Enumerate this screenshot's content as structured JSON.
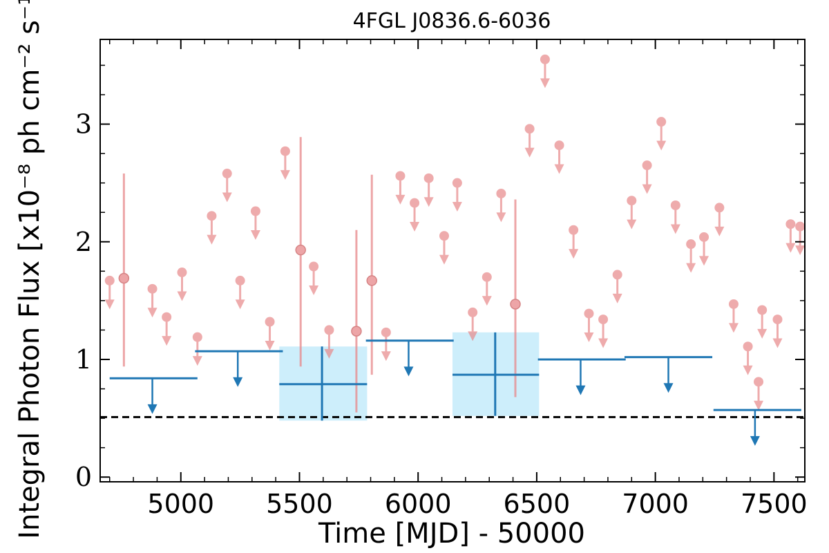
{
  "chart_data": {
    "type": "scatter",
    "title": "4FGL J0836.6-6036",
    "xlabel": "Time [MJD] - 50000",
    "ylabel": "Integral Photon Flux [x10⁻⁸ ph cm⁻² s⁻¹]",
    "xlim": [
      4660,
      7630
    ],
    "ylim": [
      -0.04,
      3.72
    ],
    "xticks": [
      5000,
      5500,
      6000,
      6500,
      7000,
      7500
    ],
    "xtick_labels": [
      "5000",
      "5500",
      "6000",
      "6500",
      "7000",
      "7500"
    ],
    "yticks": [
      0,
      1,
      2,
      3
    ],
    "ytick_labels": [
      "0",
      "1",
      "2",
      "3"
    ],
    "grid": false,
    "reference_line": {
      "y": 0.51,
      "style": "dashed",
      "color": "#000000"
    },
    "colors": {
      "monthly": "#e8888a",
      "yearly": "#1f77b4",
      "band": "#cdeefb",
      "reference": "#000000"
    },
    "series": [
      {
        "points_role": "monthly upper limits",
        "values": [
          {
            "x": 4700,
            "y": 1.67
          },
          {
            "x": 4880,
            "y": 1.6
          },
          {
            "x": 4940,
            "y": 1.36
          },
          {
            "x": 5005,
            "y": 1.74
          },
          {
            "x": 5070,
            "y": 1.19
          },
          {
            "x": 5130,
            "y": 2.22
          },
          {
            "x": 5195,
            "y": 2.58
          },
          {
            "x": 5250,
            "y": 1.67
          },
          {
            "x": 5315,
            "y": 2.26
          },
          {
            "x": 5375,
            "y": 1.32
          },
          {
            "x": 5440,
            "y": 2.77
          },
          {
            "x": 5560,
            "y": 1.79
          },
          {
            "x": 5625,
            "y": 1.25
          },
          {
            "x": 5865,
            "y": 1.23
          },
          {
            "x": 5925,
            "y": 2.56
          },
          {
            "x": 5985,
            "y": 2.33
          },
          {
            "x": 6045,
            "y": 2.54
          },
          {
            "x": 6110,
            "y": 2.05
          },
          {
            "x": 6165,
            "y": 2.5
          },
          {
            "x": 6230,
            "y": 1.4
          },
          {
            "x": 6290,
            "y": 1.7
          },
          {
            "x": 6350,
            "y": 2.41
          },
          {
            "x": 6470,
            "y": 2.96
          },
          {
            "x": 6535,
            "y": 3.55
          },
          {
            "x": 6595,
            "y": 2.82
          },
          {
            "x": 6655,
            "y": 2.1
          },
          {
            "x": 6720,
            "y": 1.39
          },
          {
            "x": 6780,
            "y": 1.34
          },
          {
            "x": 6840,
            "y": 1.72
          },
          {
            "x": 6900,
            "y": 2.35
          },
          {
            "x": 6965,
            "y": 2.65
          },
          {
            "x": 7025,
            "y": 3.02
          },
          {
            "x": 7085,
            "y": 2.31
          },
          {
            "x": 7150,
            "y": 1.98
          },
          {
            "x": 7205,
            "y": 2.04
          },
          {
            "x": 7270,
            "y": 2.29
          },
          {
            "x": 7330,
            "y": 1.47
          },
          {
            "x": 7390,
            "y": 1.11
          },
          {
            "x": 7450,
            "y": 1.42
          },
          {
            "x": 7515,
            "y": 1.34
          },
          {
            "x": 7570,
            "y": 2.15
          },
          {
            "x": 7435,
            "y": 0.81
          },
          {
            "x": 7610,
            "y": 2.13
          }
        ]
      },
      {
        "points_role": "monthly detections",
        "values": [
          {
            "x": 4760,
            "y": 1.69,
            "ylo": 0.94,
            "yhi": 2.58
          },
          {
            "x": 5505,
            "y": 1.93,
            "ylo": 0.94,
            "yhi": 2.89
          },
          {
            "x": 5740,
            "y": 1.24,
            "ylo": 0.55,
            "yhi": 2.1
          },
          {
            "x": 5805,
            "y": 1.67,
            "ylo": 0.87,
            "yhi": 2.57
          },
          {
            "x": 6410,
            "y": 1.47,
            "ylo": 0.68,
            "yhi": 2.36
          }
        ]
      },
      {
        "points_role": "yearly upper limits",
        "values": [
          {
            "x": 4880,
            "xlo": 4700,
            "xhi": 5070,
            "y": 0.84
          },
          {
            "x": 5240,
            "xlo": 5060,
            "xhi": 5430,
            "y": 1.07
          },
          {
            "x": 5960,
            "xlo": 5780,
            "xhi": 6150,
            "y": 1.16
          },
          {
            "x": 6685,
            "xlo": 6505,
            "xhi": 6875,
            "y": 1.0
          },
          {
            "x": 7055,
            "xlo": 6870,
            "xhi": 7240,
            "y": 1.02
          },
          {
            "x": 7420,
            "xlo": 7245,
            "xhi": 7615,
            "y": 0.57
          }
        ]
      },
      {
        "points_role": "yearly detections",
        "values": [
          {
            "x": 5595,
            "xlo": 5415,
            "xhi": 5785,
            "y": 0.79,
            "ylo": 0.48,
            "yhi": 1.11
          },
          {
            "x": 6325,
            "xlo": 6145,
            "xhi": 6510,
            "y": 0.87,
            "ylo": 0.52,
            "yhi": 1.23
          }
        ]
      }
    ]
  }
}
